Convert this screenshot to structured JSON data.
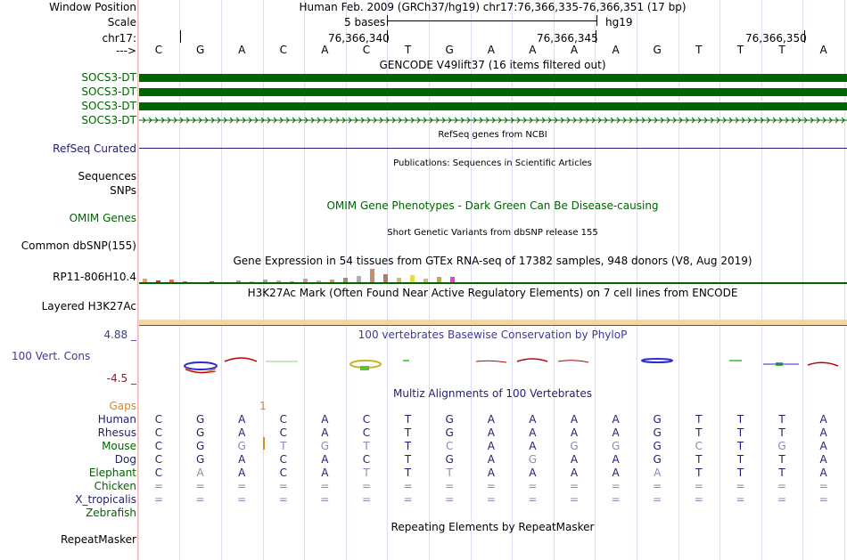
{
  "labels": {
    "window_position": "Window Position",
    "scale": "Scale",
    "chrom": "chr17:",
    "arrow": "--->",
    "socs3_1": "SOCS3-DT",
    "socs3_2": "SOCS3-DT",
    "socs3_3": "SOCS3-DT",
    "socs3_4": "SOCS3-DT",
    "refseq": "RefSeq Curated",
    "sequences": "Sequences",
    "snps": "SNPs",
    "omim": "OMIM Genes",
    "dbsnp": "Common dbSNP(155)",
    "rp11": "RP11-806H10.4",
    "h3k27": "Layered H3K27Ac",
    "cons": "100 Vert. Cons",
    "cons_max": "4.88 _",
    "cons_min": "-4.5 _",
    "gaps": "Gaps",
    "human": "Human",
    "rhesus": "Rhesus",
    "mouse": "Mouse",
    "dog": "Dog",
    "elephant": "Elephant",
    "chicken": "Chicken",
    "xtrop": "X_tropicalis",
    "zebrafish": "Zebrafish",
    "repeatmasker": "RepeatMasker"
  },
  "header": {
    "assembly": "Human Feb. 2009 (GRCh37/hg19)   chr17:76,366,335-76,366,351 (17 bp)",
    "scale_text": "5 bases",
    "scale_db": "hg19",
    "pos1": "76,366,340",
    "pos2": "76,366,345",
    "pos3": "76,366,350"
  },
  "titles": {
    "gencode": "GENCODE V49lift37 (16 items filtered out)",
    "refseq": "RefSeq genes from NCBI",
    "publications": "Publications: Sequences in Scientific Articles",
    "omim": "OMIM Gene Phenotypes - Dark Green Can Be Disease-causing",
    "dbsnp": "Short Genetic Variants from dbSNP release 155",
    "gtex": "Gene Expression in 54 tissues from GTEx RNA-seq of 17382 samples, 948 donors (V8, Aug 2019)",
    "h3k27": "H3K27Ac Mark (Often Found Near Active Regulatory Elements) on 7 cell lines from ENCODE",
    "phylop": "100 vertebrates Basewise Conservation by PhyloP",
    "multiz": "Multiz Alignments of 100 Vertebrates",
    "repeatmasker": "Repeating Elements by RepeatMasker"
  },
  "gaps_count": "1",
  "sequence": [
    "C",
    "G",
    "A",
    "C",
    "A",
    "C",
    "T",
    "G",
    "A",
    "A",
    "A",
    "A",
    "G",
    "T",
    "T",
    "T",
    "A"
  ],
  "alignments": {
    "human": [
      "C",
      "G",
      "A",
      "C",
      "A",
      "C",
      "T",
      "G",
      "A",
      "A",
      "A",
      "A",
      "G",
      "T",
      "T",
      "T",
      "A"
    ],
    "rhesus": [
      "C",
      "G",
      "A",
      "C",
      "A",
      "C",
      "T",
      "G",
      "A",
      "A",
      "A",
      "A",
      "G",
      "T",
      "T",
      "T",
      "A"
    ],
    "mouse": [
      "C",
      "G",
      "G",
      "T",
      "G",
      "T",
      "T",
      "C",
      "A",
      "A",
      "G",
      "G",
      "G",
      "C",
      "T",
      "G",
      "A"
    ],
    "dog": [
      "C",
      "G",
      "A",
      "C",
      "A",
      "C",
      "T",
      "G",
      "A",
      "G",
      "A",
      "A",
      "G",
      "T",
      "T",
      "T",
      "A"
    ],
    "elephant": [
      "C",
      "A",
      "A",
      "C",
      "A",
      "T",
      "T",
      "T",
      "A",
      "A",
      "A",
      "A",
      "A",
      "T",
      "T",
      "T",
      "A"
    ],
    "chicken": [
      "=",
      "=",
      "=",
      "=",
      "=",
      "=",
      "=",
      "=",
      "=",
      "=",
      "=",
      "=",
      "=",
      "=",
      "=",
      "=",
      "="
    ],
    "xtrop": [
      "=",
      "=",
      "=",
      "=",
      "=",
      "=",
      "=",
      "=",
      "=",
      "=",
      "=",
      "=",
      "=",
      "=",
      "=",
      "=",
      "="
    ]
  },
  "colors": {
    "gene_green": "#006400",
    "navy": "#1f1f70",
    "cons_blue": "#3a3aa0",
    "gaps_orange": "#d98a1a",
    "h3k27_bar": "#f3d79c"
  }
}
